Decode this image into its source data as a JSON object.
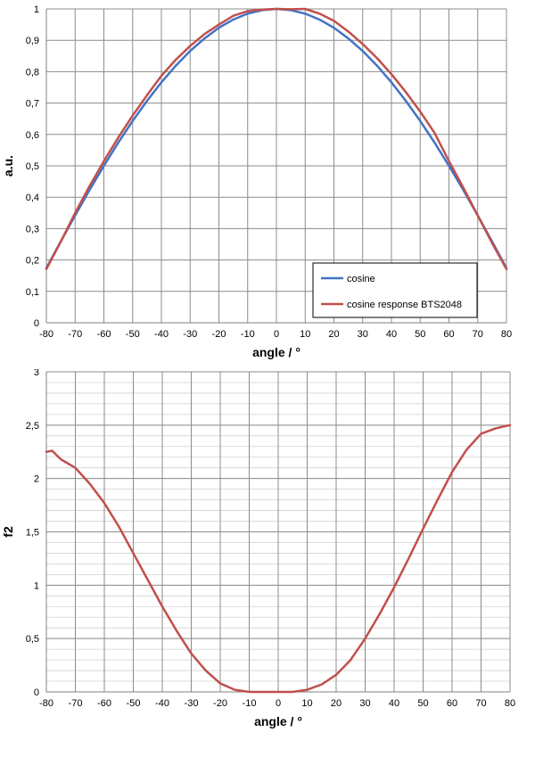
{
  "chart_data": [
    {
      "type": "line",
      "xlabel": "angle / °",
      "ylabel": "a.u.",
      "xlim": [
        -80,
        80
      ],
      "ylim": [
        0,
        1
      ],
      "x_ticks": [
        "-80",
        "-70",
        "-60",
        "-50",
        "-40",
        "-30",
        "-20",
        "-10",
        "0",
        "10",
        "20",
        "30",
        "40",
        "50",
        "60",
        "70",
        "80"
      ],
      "y_ticks": [
        "0",
        "0,1",
        "0,2",
        "0,3",
        "0,4",
        "0,5",
        "0,6",
        "0,7",
        "0,8",
        "0,9",
        "1"
      ],
      "grid": true,
      "legend_position": "bottom-right",
      "x": [
        -80,
        -75,
        -70,
        -65,
        -60,
        -55,
        -50,
        -45,
        -40,
        -35,
        -30,
        -25,
        -20,
        -15,
        -10,
        -5,
        0,
        5,
        10,
        15,
        20,
        25,
        30,
        35,
        40,
        45,
        50,
        55,
        60,
        65,
        70,
        75,
        80
      ],
      "series": [
        {
          "name": "cosine",
          "color": "#4472c4",
          "values": [
            0.174,
            0.259,
            0.342,
            0.423,
            0.5,
            0.574,
            0.643,
            0.707,
            0.766,
            0.819,
            0.866,
            0.906,
            0.94,
            0.966,
            0.985,
            0.996,
            1.0,
            0.996,
            0.985,
            0.966,
            0.94,
            0.906,
            0.866,
            0.819,
            0.766,
            0.707,
            0.643,
            0.574,
            0.5,
            0.423,
            0.342,
            0.259,
            0.174
          ]
        },
        {
          "name": "cosine response BTS2048",
          "color": "#c0504d",
          "values": [
            0.171,
            0.258,
            0.35,
            0.435,
            0.515,
            0.59,
            0.66,
            0.725,
            0.787,
            0.838,
            0.882,
            0.92,
            0.95,
            0.978,
            0.993,
            0.998,
            1.0,
            0.999,
            1.0,
            0.985,
            0.962,
            0.928,
            0.888,
            0.843,
            0.792,
            0.735,
            0.673,
            0.605,
            0.515,
            0.43,
            0.342,
            0.254,
            0.171
          ]
        }
      ]
    },
    {
      "type": "line",
      "xlabel": "angle / °",
      "ylabel": "f2",
      "xlim": [
        -80,
        80
      ],
      "ylim": [
        0,
        3
      ],
      "x_ticks": [
        "-80",
        "-70",
        "-60",
        "-50",
        "-40",
        "-30",
        "-20",
        "-10",
        "0",
        "10",
        "20",
        "30",
        "40",
        "50",
        "60",
        "70",
        "80"
      ],
      "y_ticks": [
        "0",
        "0,5",
        "1",
        "1,5",
        "2",
        "2,5",
        "3"
      ],
      "grid": true,
      "x": [
        -80,
        -78,
        -75,
        -70,
        -65,
        -60,
        -55,
        -50,
        -45,
        -40,
        -35,
        -30,
        -25,
        -20,
        -15,
        -10,
        -5,
        0,
        5,
        10,
        15,
        20,
        25,
        30,
        35,
        40,
        45,
        50,
        55,
        60,
        65,
        70,
        75,
        80
      ],
      "series": [
        {
          "color": "#c0504d",
          "values": [
            2.25,
            2.26,
            2.18,
            2.1,
            1.95,
            1.77,
            1.55,
            1.3,
            1.05,
            0.8,
            0.57,
            0.36,
            0.2,
            0.08,
            0.02,
            0.0,
            0.0,
            0.0,
            0.0,
            0.02,
            0.07,
            0.16,
            0.3,
            0.5,
            0.73,
            0.98,
            1.25,
            1.53,
            1.8,
            2.06,
            2.27,
            2.42,
            2.47,
            2.5
          ]
        }
      ]
    }
  ]
}
